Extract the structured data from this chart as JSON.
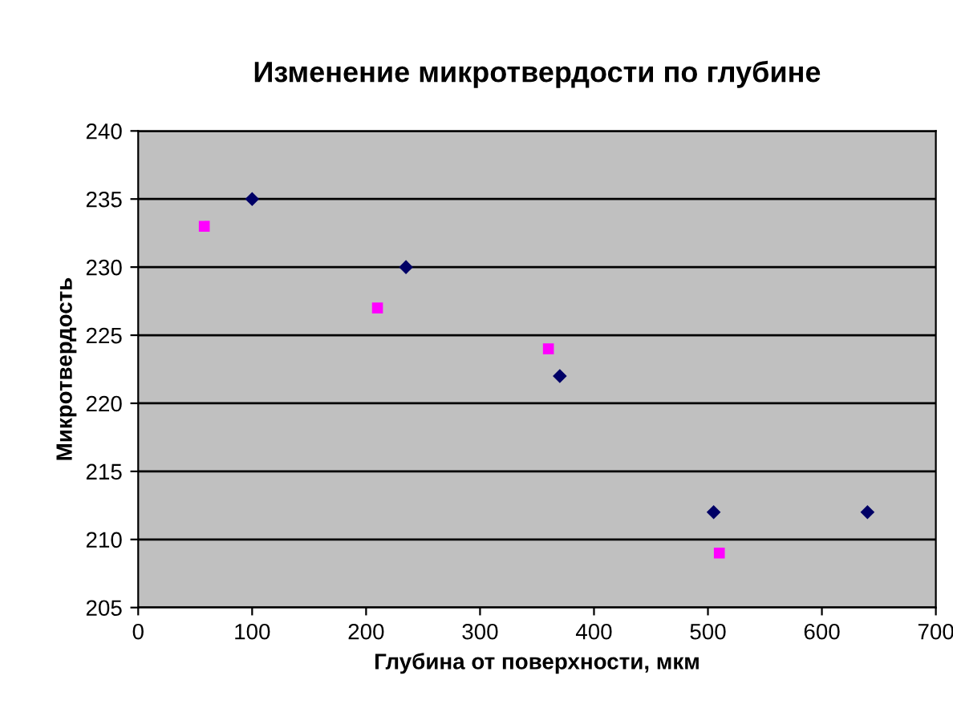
{
  "chart_data": {
    "type": "scatter",
    "title": "Изменение микротвердости по глубине",
    "xlabel": "Глубина от поверхности, мкм",
    "ylabel": "Микротвердость",
    "series": [
      {
        "color": "#000066",
        "marker": "diamond",
        "x": [
          100,
          235,
          370,
          505,
          640
        ],
        "values": [
          235,
          230,
          222,
          212,
          212
        ]
      },
      {
        "color": "#ff00ff",
        "marker": "square",
        "x": [
          58,
          210,
          360,
          510
        ],
        "values": [
          233,
          227,
          224,
          209
        ]
      }
    ],
    "xlim": [
      0,
      700
    ],
    "xticks": [
      0,
      100,
      200,
      300,
      400,
      500,
      600,
      700
    ],
    "ylim": [
      205,
      240
    ],
    "yticks": [
      205,
      210,
      215,
      220,
      225,
      230,
      235,
      240
    ],
    "grid": "y",
    "legend": false
  }
}
